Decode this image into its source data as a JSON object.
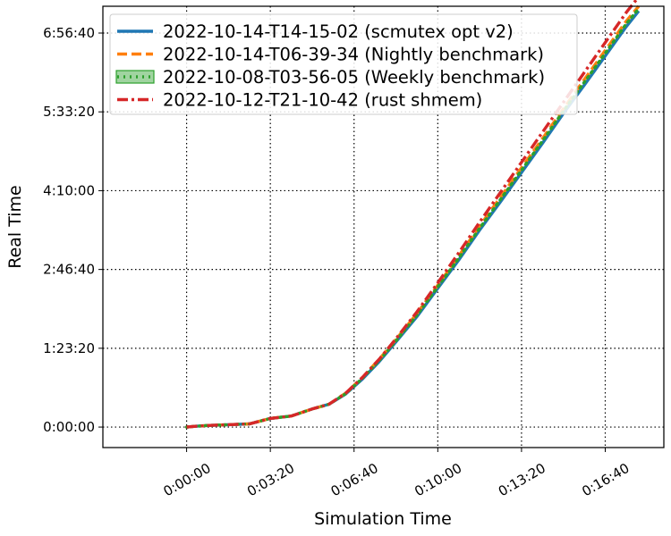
{
  "chart_data": {
    "type": "line",
    "xlabel": "Simulation Time",
    "ylabel": "Real Time",
    "xlim": [
      -200,
      1140
    ],
    "ylim": [
      -1300,
      26700
    ],
    "x_ticks": [
      {
        "value": 0,
        "label": "0:00:00"
      },
      {
        "value": 200,
        "label": "0:03:20"
      },
      {
        "value": 400,
        "label": "0:06:40"
      },
      {
        "value": 600,
        "label": "0:10:00"
      },
      {
        "value": 800,
        "label": "0:13:20"
      },
      {
        "value": 1000,
        "label": "0:16:40"
      }
    ],
    "y_ticks": [
      {
        "value": 0,
        "label": "0:00:00"
      },
      {
        "value": 5000,
        "label": "1:23:20"
      },
      {
        "value": 10000,
        "label": "2:46:40"
      },
      {
        "value": 15000,
        "label": "4:10:00"
      },
      {
        "value": 20000,
        "label": "5:33:20"
      },
      {
        "value": 25000,
        "label": "6:56:40"
      }
    ],
    "grid": true,
    "legend_position": "top-left",
    "series": [
      {
        "name": "2022-10-14-T14-15-02 (scmutex opt v2)",
        "color": "#1f77b4",
        "style": "solid",
        "x": [
          0,
          20,
          50,
          100,
          150,
          200,
          250,
          300,
          340,
          380,
          420,
          460,
          500,
          550,
          600,
          650,
          700,
          750,
          800,
          850,
          900,
          950,
          1000,
          1050,
          1080
        ],
        "y": [
          0,
          50,
          100,
          150,
          200,
          550,
          700,
          1150,
          1450,
          2100,
          3050,
          4150,
          5400,
          7000,
          8800,
          10600,
          12500,
          14300,
          16150,
          18000,
          19900,
          21700,
          23550,
          25400,
          26400
        ]
      },
      {
        "name": "2022-10-14-T06-39-34 (Nightly benchmark)",
        "color": "#ff7f0e",
        "style": "dashed",
        "x": [
          0,
          20,
          50,
          100,
          150,
          200,
          250,
          300,
          340,
          380,
          420,
          460,
          500,
          550,
          600,
          650,
          700,
          750,
          800,
          850,
          900,
          950,
          1000,
          1050,
          1080
        ],
        "y": [
          0,
          50,
          100,
          150,
          200,
          550,
          700,
          1150,
          1450,
          2150,
          3150,
          4300,
          5550,
          7200,
          9000,
          10850,
          12750,
          14600,
          16450,
          18300,
          20200,
          22050,
          23900,
          25750,
          26700
        ]
      },
      {
        "name": "2022-10-08-T03-56-05 (Weekly benchmark)",
        "color": "#2ca02c",
        "style": "dotted",
        "x": [
          0,
          20,
          50,
          100,
          150,
          200,
          250,
          300,
          340,
          380,
          420,
          460,
          500,
          550,
          600,
          650,
          700,
          750,
          800,
          850,
          900,
          950,
          1000,
          1050,
          1080
        ],
        "y": [
          0,
          50,
          100,
          150,
          200,
          550,
          700,
          1150,
          1450,
          2120,
          3100,
          4220,
          5470,
          7100,
          8900,
          10720,
          12620,
          14450,
          16300,
          18150,
          20050,
          21880,
          23720,
          25580,
          26550
        ]
      },
      {
        "name": "2022-10-12-T21-10-42 (rust shmem)",
        "color": "#d62728",
        "style": "dashdot",
        "x": [
          0,
          20,
          50,
          100,
          150,
          200,
          250,
          300,
          340,
          380,
          420,
          460,
          500,
          550,
          600,
          650,
          700,
          750,
          800,
          850,
          900,
          950,
          1000,
          1050,
          1080
        ],
        "y": [
          0,
          50,
          100,
          150,
          200,
          550,
          700,
          1150,
          1450,
          2150,
          3150,
          4300,
          5600,
          7300,
          9150,
          11050,
          13000,
          14900,
          16800,
          18700,
          20600,
          22500,
          24400,
          26300,
          27300
        ]
      }
    ]
  }
}
